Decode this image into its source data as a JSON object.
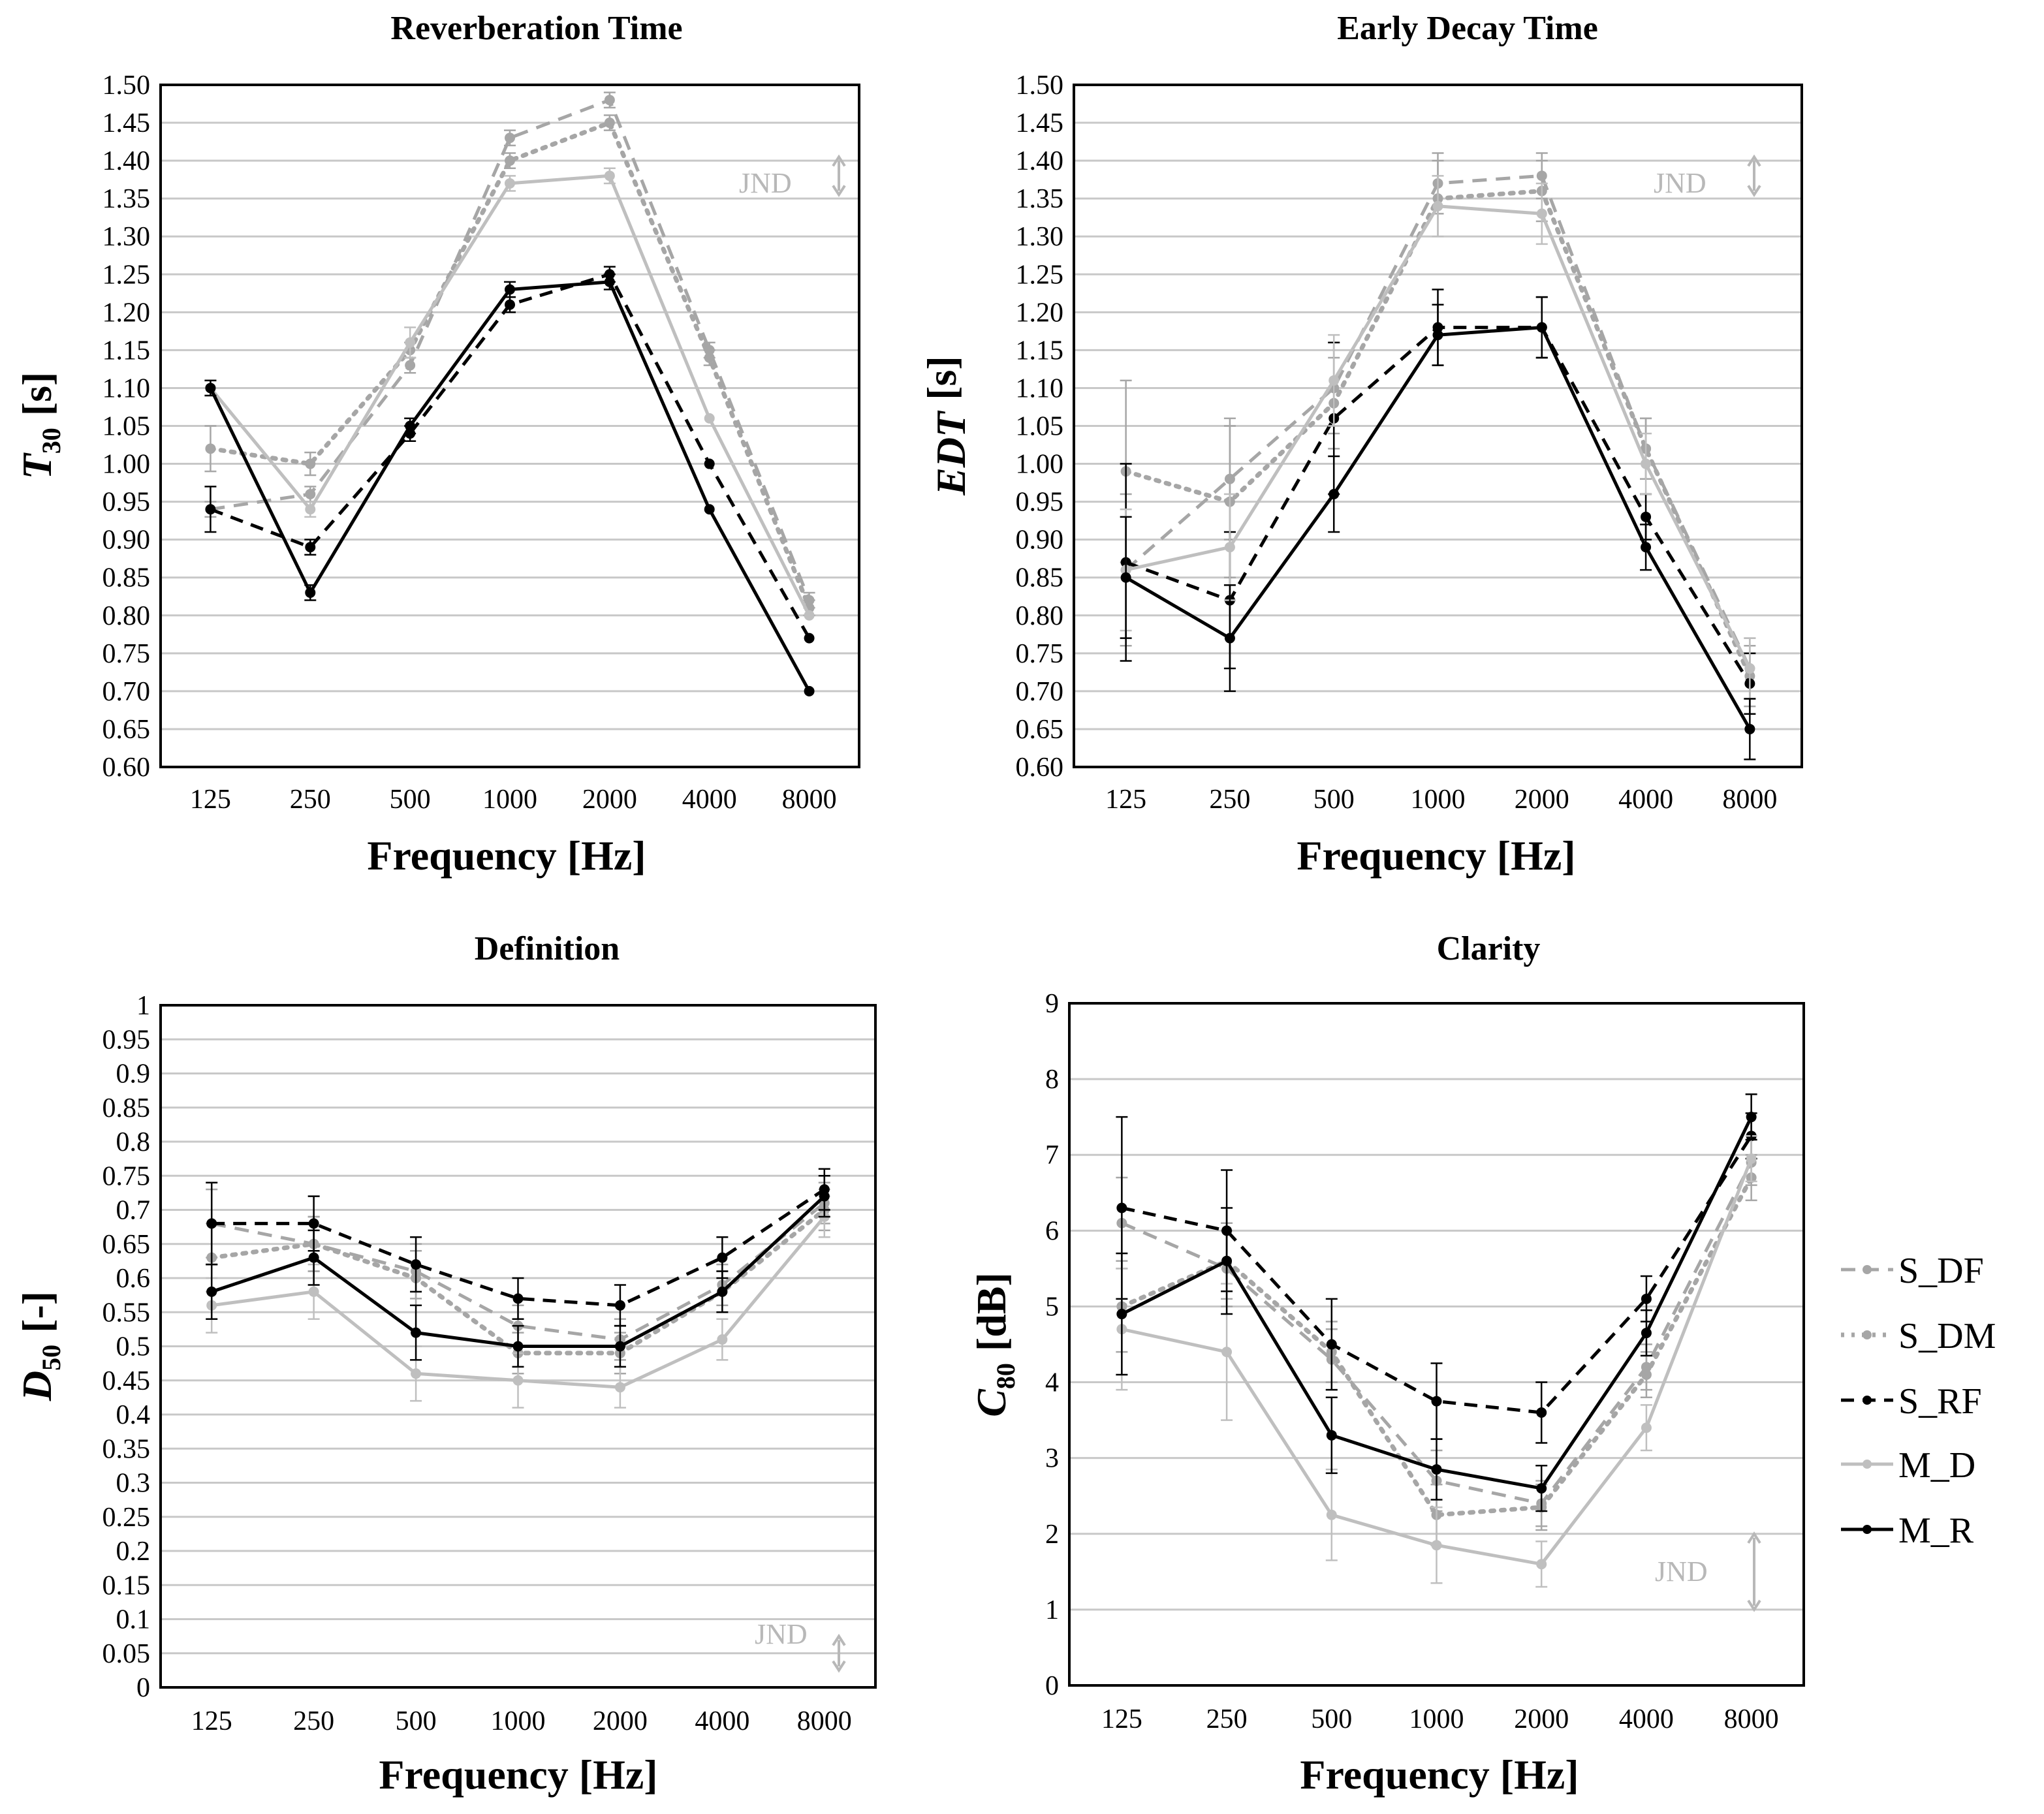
{
  "styles": {
    "S_DF": {
      "color": "#a6a6a6",
      "dash": "22 14",
      "width": 5
    },
    "S_DM": {
      "color": "#a6a6a6",
      "dash": "5 11",
      "width": 7
    },
    "S_RF": {
      "color": "#000000",
      "dash": "20 13",
      "width": 5
    },
    "M_D": {
      "color": "#bfbfbf",
      "dash": "",
      "width": 5
    },
    "M_R": {
      "color": "#000000",
      "dash": "",
      "width": 5
    }
  },
  "legend": [
    "S_DF",
    "S_DM",
    "S_RF",
    "M_D",
    "M_R"
  ],
  "chart_data": [
    {
      "id": "rt",
      "type": "line",
      "title": "Reverberation Time",
      "xlabel": "Frequency [Hz]",
      "ylabel_main": "T",
      "ylabel_sub": "30",
      "ylabel_rest": "[s]",
      "jnd_label": "JND",
      "categories": [
        "125",
        "250",
        "500",
        "1000",
        "2000",
        "4000",
        "8000"
      ],
      "ylim": [
        0.6,
        1.5
      ],
      "ystep": 0.05,
      "ytick_labels": [
        "0.60",
        "0.65",
        "0.70",
        "0.75",
        "0.80",
        "0.85",
        "0.90",
        "0.95",
        "1.00",
        "1.05",
        "1.10",
        "1.15",
        "1.20",
        "1.25",
        "1.30",
        "1.35",
        "1.40",
        "1.45",
        "1.50"
      ],
      "jnd_range": [
        1.355,
        1.405
      ],
      "series": [
        {
          "name": "S_DF",
          "values": [
            0.94,
            0.96,
            1.13,
            1.43,
            1.48,
            1.15,
            0.82
          ],
          "err": [
            0.01,
            0.01,
            0.01,
            0.01,
            0.01,
            0.01,
            0.01
          ]
        },
        {
          "name": "S_DM",
          "values": [
            1.02,
            1.0,
            1.15,
            1.4,
            1.45,
            1.14,
            0.81
          ],
          "err": [
            0.03,
            0.015,
            0.01,
            0.01,
            0.01,
            0.01,
            0.01
          ]
        },
        {
          "name": "S_RF",
          "values": [
            0.94,
            0.89,
            1.04,
            1.21,
            1.25,
            1.0,
            0.77
          ],
          "err": [
            0.03,
            0.01,
            0.01,
            0.01,
            0.01,
            0.0,
            0.0
          ]
        },
        {
          "name": "M_D",
          "values": [
            1.1,
            0.94,
            1.16,
            1.37,
            1.38,
            1.06,
            0.8
          ],
          "err": [
            0.01,
            0.01,
            0.02,
            0.01,
            0.01,
            0.0,
            0.0
          ]
        },
        {
          "name": "M_R",
          "values": [
            1.1,
            0.83,
            1.05,
            1.23,
            1.24,
            0.94,
            0.7
          ],
          "err": [
            0.01,
            0.01,
            0.01,
            0.01,
            0.01,
            0.0,
            0.0
          ]
        }
      ]
    },
    {
      "id": "edt",
      "type": "line",
      "title": "Early Decay Time",
      "xlabel": "Frequency [Hz]",
      "ylabel_main": "EDT",
      "ylabel_sub": "",
      "ylabel_rest": "[s]",
      "jnd_label": "JND",
      "categories": [
        "125",
        "250",
        "500",
        "1000",
        "2000",
        "4000",
        "8000"
      ],
      "ylim": [
        0.6,
        1.5
      ],
      "ystep": 0.05,
      "ytick_labels": [
        "0.60",
        "0.65",
        "0.70",
        "0.75",
        "0.80",
        "0.85",
        "0.90",
        "0.95",
        "1.00",
        "1.05",
        "1.10",
        "1.15",
        "1.20",
        "1.25",
        "1.30",
        "1.35",
        "1.40",
        "1.45",
        "1.50"
      ],
      "jnd_range": [
        1.355,
        1.405
      ],
      "series": [
        {
          "name": "S_DF",
          "values": [
            0.86,
            0.98,
            1.1,
            1.37,
            1.38,
            1.02,
            0.73
          ],
          "err": [
            0.1,
            0.08,
            0.06,
            0.04,
            0.03,
            0.04,
            0.04
          ]
        },
        {
          "name": "S_DM",
          "values": [
            0.99,
            0.95,
            1.08,
            1.35,
            1.36,
            1.02,
            0.72
          ],
          "err": [
            0.12,
            0.1,
            0.06,
            0.05,
            0.04,
            0.04,
            0.04
          ]
        },
        {
          "name": "S_RF",
          "values": [
            0.87,
            0.82,
            1.06,
            1.18,
            1.18,
            0.93,
            0.71
          ],
          "err": [
            0.13,
            0.09,
            0.1,
            0.05,
            0.04,
            0.03,
            0.04
          ]
        },
        {
          "name": "M_D",
          "values": [
            0.86,
            0.89,
            1.11,
            1.34,
            1.33,
            1.0,
            0.73
          ],
          "err": [
            0.08,
            0.07,
            0.06,
            0.04,
            0.04,
            0.04,
            0.04
          ]
        },
        {
          "name": "M_R",
          "values": [
            0.85,
            0.77,
            0.96,
            1.17,
            1.18,
            0.89,
            0.65
          ],
          "err": [
            0.08,
            0.07,
            0.05,
            0.04,
            0.04,
            0.03,
            0.04
          ]
        }
      ]
    },
    {
      "id": "d50",
      "type": "line",
      "title": "Definition",
      "xlabel": "Frequency [Hz]",
      "ylabel_main": "D",
      "ylabel_sub": "50",
      "ylabel_rest": "[-]",
      "jnd_label": "JND",
      "categories": [
        "125",
        "250",
        "500",
        "1000",
        "2000",
        "4000",
        "8000"
      ],
      "ylim": [
        0,
        1
      ],
      "ystep": 0.05,
      "ytick_labels": [
        "0",
        "0.05",
        "0.1",
        "0.15",
        "0.2",
        "0.25",
        "0.3",
        "0.35",
        "0.4",
        "0.45",
        "0.5",
        "0.55",
        "0.6",
        "0.65",
        "0.7",
        "0.75",
        "0.8",
        "0.85",
        "0.9",
        "0.95",
        "1"
      ],
      "jnd_range": [
        0.025,
        0.075
      ],
      "series": [
        {
          "name": "S_DF",
          "values": [
            0.68,
            0.65,
            0.61,
            0.53,
            0.51,
            0.59,
            0.71
          ],
          "err": [
            0.05,
            0.04,
            0.04,
            0.03,
            0.03,
            0.03,
            0.03
          ]
        },
        {
          "name": "S_DM",
          "values": [
            0.63,
            0.65,
            0.6,
            0.49,
            0.49,
            0.58,
            0.7
          ],
          "err": [
            0.05,
            0.04,
            0.04,
            0.03,
            0.03,
            0.03,
            0.03
          ]
        },
        {
          "name": "S_RF",
          "values": [
            0.68,
            0.68,
            0.62,
            0.57,
            0.56,
            0.63,
            0.73
          ],
          "err": [
            0.06,
            0.04,
            0.04,
            0.03,
            0.03,
            0.03,
            0.03
          ]
        },
        {
          "name": "M_D",
          "values": [
            0.56,
            0.58,
            0.46,
            0.45,
            0.44,
            0.51,
            0.69
          ],
          "err": [
            0.04,
            0.04,
            0.04,
            0.04,
            0.03,
            0.03,
            0.03
          ]
        },
        {
          "name": "M_R",
          "values": [
            0.58,
            0.63,
            0.52,
            0.5,
            0.5,
            0.58,
            0.72
          ],
          "err": [
            0.04,
            0.04,
            0.04,
            0.03,
            0.03,
            0.03,
            0.03
          ]
        }
      ]
    },
    {
      "id": "c80",
      "type": "line",
      "title": "Clarity",
      "xlabel": "Frequency [Hz]",
      "ylabel_main": "C",
      "ylabel_sub": "80",
      "ylabel_rest": "[dB]",
      "jnd_label": "JND",
      "categories": [
        "125",
        "250",
        "500",
        "1000",
        "2000",
        "4000",
        "8000"
      ],
      "ylim": [
        0,
        9
      ],
      "ystep": 1,
      "ytick_labels": [
        "0",
        "1",
        "2",
        "3",
        "4",
        "5",
        "6",
        "7",
        "8",
        "9"
      ],
      "jnd_range": [
        1.0,
        2.0
      ],
      "series": [
        {
          "name": "S_DF",
          "values": [
            6.1,
            5.5,
            4.3,
            2.7,
            2.4,
            4.2,
            6.9
          ],
          "err": [
            0.6,
            0.5,
            0.4,
            0.4,
            0.3,
            0.3,
            0.3
          ]
        },
        {
          "name": "S_DM",
          "values": [
            5.0,
            5.6,
            4.4,
            2.25,
            2.35,
            4.1,
            6.7
          ],
          "err": [
            0.6,
            0.5,
            0.4,
            0.4,
            0.3,
            0.3,
            0.3
          ]
        },
        {
          "name": "S_RF",
          "values": [
            6.3,
            6.0,
            4.5,
            3.75,
            3.6,
            5.1,
            7.25
          ],
          "err": [
            1.2,
            0.8,
            0.6,
            0.5,
            0.4,
            0.3,
            0.3
          ]
        },
        {
          "name": "M_D",
          "values": [
            4.7,
            4.4,
            2.25,
            1.85,
            1.6,
            3.4,
            6.95
          ],
          "err": [
            0.8,
            0.9,
            0.6,
            0.5,
            0.3,
            0.3,
            0.3
          ]
        },
        {
          "name": "M_R",
          "values": [
            4.9,
            5.6,
            3.3,
            2.85,
            2.6,
            4.65,
            7.5
          ],
          "err": [
            0.8,
            0.7,
            0.5,
            0.4,
            0.3,
            0.3,
            0.3
          ]
        }
      ]
    }
  ]
}
